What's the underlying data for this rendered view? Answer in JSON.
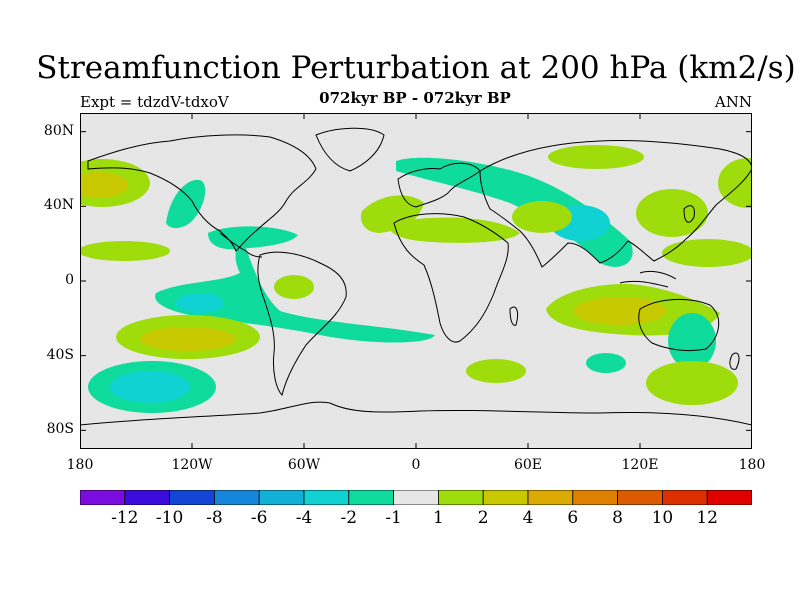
{
  "header": {
    "title": "Streamfunction Perturbation at 200 hPa (km2/s)",
    "subtitle_left": "Expt = tdzdV-tdxoV",
    "subtitle_center": "072kyr BP - 072kyr BP",
    "subtitle_right": "ANN"
  },
  "axes": {
    "lat_labels": [
      "80N",
      "40N",
      "0",
      "40S",
      "80S"
    ],
    "lat_values": [
      80,
      40,
      0,
      -40,
      -80
    ],
    "lon_labels": [
      "180",
      "120W",
      "60W",
      "0",
      "60E",
      "120E",
      "180"
    ],
    "lon_values": [
      -180,
      -120,
      -60,
      0,
      60,
      120,
      180
    ]
  },
  "colorbar": {
    "colors": [
      "#7a0ce0",
      "#3a0ddc",
      "#1346d6",
      "#1486dc",
      "#12b0d6",
      "#10d2d2",
      "#0fdc9c",
      "#e6e6e6",
      "#9edc0c",
      "#c8c800",
      "#dcaa00",
      "#e08000",
      "#dc5a00",
      "#dc3000",
      "#e00000"
    ],
    "labels": [
      "-12",
      "-10",
      "-8",
      "-6",
      "-4",
      "-2",
      "-1",
      "1",
      "2",
      "4",
      "6",
      "8",
      "10",
      "12"
    ]
  },
  "map": {
    "background_color": "#e6e6e6",
    "coastline_color": "#000000",
    "land_outline": "continental coastlines"
  }
}
